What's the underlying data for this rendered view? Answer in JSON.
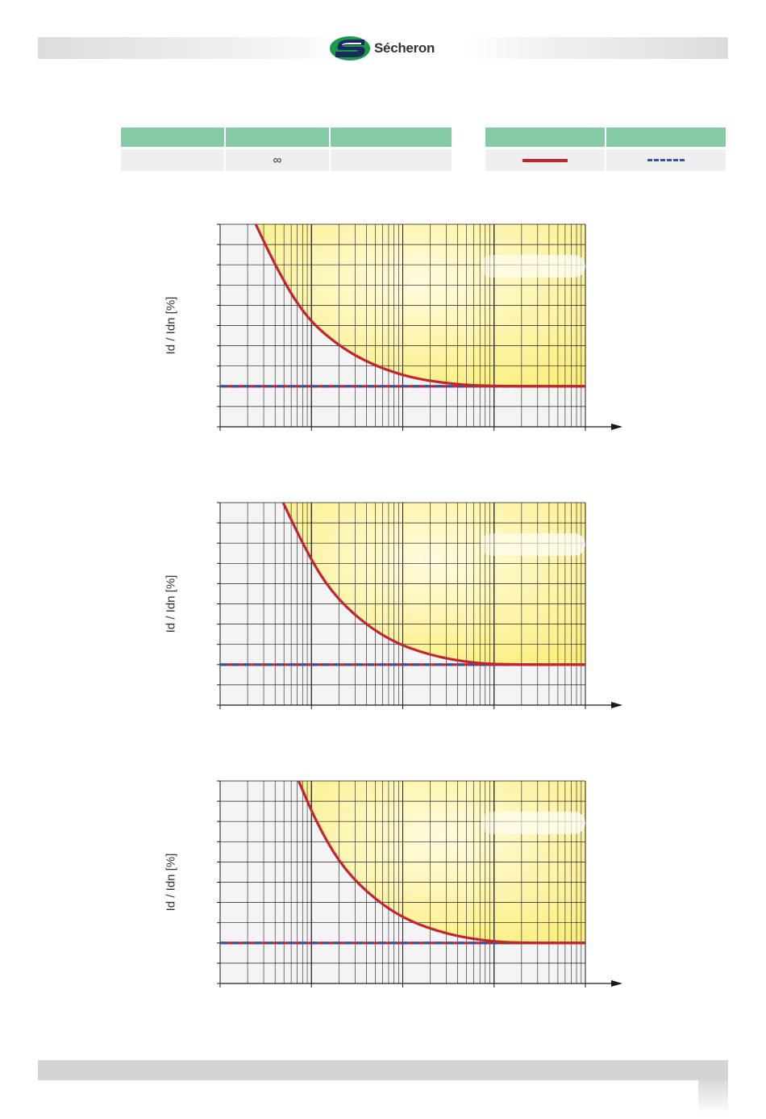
{
  "header": {
    "logo_text": "Sécheron",
    "brand_colors": {
      "green": "#1a9a4a",
      "navy": "#1b2a5c",
      "header_fill": "#86cba6"
    }
  },
  "table_left": {
    "cells": [
      "",
      "∞",
      ""
    ]
  },
  "table_right": {
    "legend": [
      {
        "style": "solid",
        "color": "#c4252c"
      },
      {
        "style": "dashed",
        "color": "#2e55a8"
      }
    ]
  },
  "chart_data": [
    {
      "type": "line",
      "ylabel": "Id / Idn [%]",
      "x_scale": "log",
      "x_decades": 4,
      "y_divisions": 10,
      "threshold_y": 2,
      "series": [
        {
          "style": "solid",
          "color": "#c4252c",
          "points": [
            [
              0.39,
              10
            ],
            [
              0.6,
              8
            ],
            [
              0.85,
              6
            ],
            [
              1.1,
              4.7
            ],
            [
              1.5,
              3.4
            ],
            [
              2.0,
              2.5
            ],
            [
              2.5,
              2.12
            ],
            [
              3.0,
              2.0
            ],
            [
              4.0,
              2.0
            ]
          ]
        },
        {
          "style": "dashed",
          "color": "#2e55a8",
          "points": [
            [
              0,
              2
            ],
            [
              4,
              2
            ]
          ]
        }
      ]
    },
    {
      "type": "line",
      "ylabel": "Id / Idn [%]",
      "x_scale": "log",
      "x_decades": 4,
      "y_divisions": 10,
      "threshold_y": 2,
      "series": [
        {
          "style": "solid",
          "color": "#c4252c",
          "points": [
            [
              0.69,
              10
            ],
            [
              0.9,
              8
            ],
            [
              1.15,
              6
            ],
            [
              1.45,
              4.5
            ],
            [
              1.85,
              3.2
            ],
            [
              2.3,
              2.45
            ],
            [
              2.8,
              2.05
            ],
            [
              3.3,
              2.0
            ],
            [
              4.0,
              2.0
            ]
          ]
        },
        {
          "style": "dashed",
          "color": "#2e55a8",
          "points": [
            [
              0,
              2
            ],
            [
              4,
              2
            ]
          ]
        }
      ]
    },
    {
      "type": "line",
      "ylabel": "Id / Idn [%]",
      "x_scale": "log",
      "x_decades": 4,
      "y_divisions": 10,
      "threshold_y": 2,
      "series": [
        {
          "style": "solid",
          "color": "#c4252c",
          "points": [
            [
              0.86,
              10
            ],
            [
              1.05,
              8
            ],
            [
              1.3,
              6
            ],
            [
              1.6,
              4.5
            ],
            [
              2.0,
              3.2
            ],
            [
              2.5,
              2.4
            ],
            [
              3.0,
              2.05
            ],
            [
              3.4,
              2.0
            ],
            [
              4.0,
              2.0
            ]
          ]
        },
        {
          "style": "dashed",
          "color": "#2e55a8",
          "points": [
            [
              0,
              2
            ],
            [
              4,
              2
            ]
          ]
        }
      ]
    }
  ]
}
